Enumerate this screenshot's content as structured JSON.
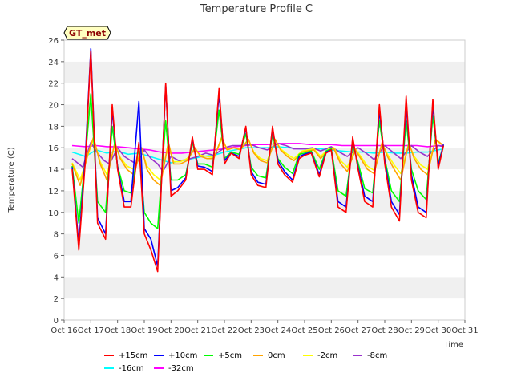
{
  "chart_data": {
    "type": "line",
    "title": "Temperature Profile C",
    "xlabel": "Time",
    "ylabel": "Temperature (C)",
    "ylim": [
      0,
      26
    ],
    "xlim": [
      16,
      31
    ],
    "yticks": [
      0,
      2,
      4,
      6,
      8,
      10,
      12,
      14,
      16,
      18,
      20,
      22,
      24,
      26
    ],
    "xticks": [
      16,
      17,
      18,
      19,
      20,
      21,
      22,
      23,
      24,
      25,
      26,
      27,
      28,
      29,
      30,
      31
    ],
    "xtick_labels": [
      "Oct 16",
      "Oct 17",
      "Oct 18",
      "Oct 19",
      "Oct 20",
      "Oct 21",
      "Oct 22",
      "Oct 23",
      "Oct 24",
      "Oct 25",
      "Oct 26",
      "Oct 27",
      "Oct 28",
      "Oct 29",
      "Oct 30",
      "Oct 31"
    ],
    "grid": "horizontal bands",
    "badge": "GT_met",
    "legend_position": "bottom",
    "series": [
      {
        "name": "+15cm",
        "color": "#ff0000",
        "x": [
          16.3,
          16.55,
          16.8,
          17.0,
          17.25,
          17.55,
          17.8,
          18.0,
          18.25,
          18.5,
          18.8,
          19.0,
          19.25,
          19.5,
          19.8,
          20.0,
          20.25,
          20.55,
          20.8,
          21.0,
          21.25,
          21.55,
          21.8,
          22.0,
          22.25,
          22.55,
          22.8,
          23.0,
          23.25,
          23.55,
          23.8,
          24.0,
          24.25,
          24.55,
          24.8,
          25.0,
          25.25,
          25.55,
          25.8,
          26.0,
          26.25,
          26.55,
          26.8,
          27.0,
          27.25,
          27.55,
          27.8,
          28.0,
          28.25,
          28.55,
          28.8,
          29.0,
          29.25,
          29.55,
          29.8,
          30.0,
          30.2
        ],
        "y": [
          14.0,
          6.5,
          15.0,
          25.0,
          9.0,
          7.5,
          20.0,
          14.0,
          10.5,
          10.5,
          16.5,
          8.0,
          6.5,
          4.5,
          22.0,
          11.5,
          12.0,
          13.0,
          17.0,
          14.0,
          14.0,
          13.5,
          21.5,
          14.5,
          15.5,
          15.0,
          18.0,
          13.5,
          12.5,
          12.3,
          18.0,
          14.5,
          13.5,
          12.8,
          15.0,
          15.3,
          15.5,
          13.3,
          15.5,
          15.8,
          10.5,
          10.0,
          17.0,
          14.0,
          11.0,
          10.5,
          20.0,
          14.5,
          10.5,
          9.2,
          20.8,
          13.0,
          10.0,
          9.5,
          20.5,
          14.0,
          16.2
        ]
      },
      {
        "name": "+10cm",
        "color": "#0000ff",
        "x": [
          16.3,
          16.55,
          16.8,
          17.0,
          17.25,
          17.55,
          17.8,
          18.0,
          18.25,
          18.5,
          18.8,
          19.0,
          19.25,
          19.5,
          19.8,
          20.0,
          20.25,
          20.55,
          20.8,
          21.0,
          21.25,
          21.55,
          21.8,
          22.0,
          22.25,
          22.55,
          22.8,
          23.0,
          23.25,
          23.55,
          23.8,
          24.0,
          24.25,
          24.55,
          24.8,
          25.0,
          25.25,
          25.55,
          25.8,
          26.0,
          26.25,
          26.55,
          26.8,
          27.0,
          27.25,
          27.55,
          27.8,
          28.0,
          28.25,
          28.55,
          28.8,
          29.0,
          29.25,
          29.55,
          29.8,
          30.0,
          30.2
        ],
        "y": [
          14.2,
          7.0,
          15.5,
          25.2,
          9.5,
          8.0,
          19.5,
          14.2,
          11.0,
          11.0,
          20.3,
          8.5,
          7.5,
          5.0,
          21.8,
          12.0,
          12.3,
          13.2,
          16.8,
          14.3,
          14.2,
          13.8,
          21.0,
          14.8,
          15.5,
          15.2,
          17.8,
          13.8,
          12.8,
          12.6,
          17.8,
          14.8,
          13.8,
          13.0,
          15.2,
          15.4,
          15.6,
          13.5,
          15.6,
          15.8,
          11.0,
          10.5,
          16.8,
          14.2,
          11.5,
          11.0,
          19.5,
          14.8,
          11.0,
          9.8,
          20.0,
          13.5,
          10.5,
          10.0,
          20.0,
          14.3,
          16.3
        ]
      },
      {
        "name": "+5cm",
        "color": "#00ff00",
        "x": [
          16.3,
          16.55,
          16.8,
          17.0,
          17.25,
          17.55,
          17.8,
          18.0,
          18.25,
          18.5,
          18.8,
          19.0,
          19.25,
          19.5,
          19.8,
          20.0,
          20.25,
          20.55,
          20.8,
          21.0,
          21.25,
          21.55,
          21.8,
          22.0,
          22.25,
          22.55,
          22.8,
          23.0,
          23.25,
          23.55,
          23.8,
          24.0,
          24.25,
          24.55,
          24.8,
          25.0,
          25.25,
          25.55,
          25.8,
          26.0,
          26.25,
          26.55,
          26.8,
          27.0,
          27.25,
          27.55,
          27.8,
          28.0,
          28.25,
          28.55,
          28.8,
          29.0,
          29.25,
          29.55,
          29.8,
          30.0,
          30.2
        ],
        "y": [
          14.3,
          9.0,
          15.2,
          21.0,
          11.0,
          10.0,
          18.0,
          14.3,
          12.0,
          11.8,
          16.0,
          10.0,
          9.0,
          8.5,
          18.5,
          13.0,
          13.0,
          13.5,
          16.5,
          14.5,
          14.5,
          14.2,
          19.5,
          15.0,
          15.6,
          15.4,
          17.3,
          14.2,
          13.4,
          13.2,
          17.3,
          15.0,
          14.2,
          13.6,
          15.4,
          15.5,
          15.7,
          14.0,
          15.7,
          15.9,
          12.0,
          11.5,
          16.3,
          14.6,
          12.2,
          11.8,
          18.5,
          15.0,
          12.0,
          11.0,
          18.5,
          14.0,
          12.0,
          11.2,
          19.0,
          14.6,
          16.2
        ]
      },
      {
        "name": "0cm",
        "color": "#ffa500",
        "x": [
          16.3,
          16.6,
          16.9,
          17.1,
          17.35,
          17.6,
          17.9,
          18.1,
          18.35,
          18.6,
          18.9,
          19.1,
          19.35,
          19.6,
          19.9,
          20.1,
          20.35,
          20.6,
          20.9,
          21.1,
          21.35,
          21.6,
          21.9,
          22.1,
          22.35,
          22.6,
          22.9,
          23.1,
          23.35,
          23.6,
          23.9,
          24.1,
          24.35,
          24.6,
          24.9,
          25.1,
          25.35,
          25.6,
          25.9,
          26.1,
          26.35,
          26.6,
          26.9,
          27.1,
          27.35,
          27.6,
          27.9,
          28.1,
          28.35,
          28.6,
          28.9,
          29.1,
          29.35,
          29.6,
          29.9,
          30.2
        ],
        "y": [
          14.5,
          12.5,
          15.5,
          17.0,
          14.5,
          13.0,
          16.5,
          15.0,
          14.0,
          13.5,
          16.0,
          14.0,
          13.0,
          12.5,
          16.5,
          14.5,
          14.5,
          14.8,
          16.0,
          15.2,
          15.0,
          15.0,
          17.0,
          15.8,
          16.0,
          15.8,
          16.8,
          15.5,
          14.8,
          14.6,
          16.8,
          15.8,
          15.2,
          14.8,
          15.6,
          15.7,
          15.8,
          15.0,
          15.8,
          15.9,
          14.5,
          13.8,
          15.8,
          15.0,
          14.0,
          13.6,
          16.5,
          15.2,
          14.0,
          13.0,
          16.5,
          15.0,
          14.0,
          13.5,
          16.8,
          16.2
        ]
      },
      {
        "name": "-2cm",
        "color": "#ffff00",
        "x": [
          16.3,
          16.6,
          16.9,
          17.1,
          17.35,
          17.6,
          17.9,
          18.1,
          18.35,
          18.6,
          18.9,
          19.1,
          19.35,
          19.6,
          19.9,
          20.1,
          20.35,
          20.6,
          20.9,
          21.1,
          21.35,
          21.6,
          21.9,
          22.1,
          22.35,
          22.6,
          22.9,
          23.1,
          23.35,
          23.6,
          23.9,
          24.1,
          24.35,
          24.6,
          24.9,
          25.1,
          25.35,
          25.6,
          25.9,
          26.1,
          26.35,
          26.6,
          26.9,
          27.1,
          27.35,
          27.6,
          27.9,
          28.1,
          28.35,
          28.6,
          28.9,
          29.1,
          29.35,
          29.6,
          29.9,
          30.2
        ],
        "y": [
          14.6,
          13.0,
          15.4,
          16.8,
          14.7,
          13.5,
          16.3,
          15.1,
          14.3,
          14.0,
          15.8,
          14.3,
          13.5,
          13.0,
          16.2,
          14.7,
          14.7,
          15.0,
          15.9,
          15.3,
          15.2,
          15.1,
          16.8,
          15.9,
          16.0,
          15.9,
          16.7,
          15.6,
          15.0,
          14.8,
          16.7,
          15.9,
          15.4,
          15.0,
          15.7,
          15.8,
          15.9,
          15.2,
          15.9,
          16.0,
          14.8,
          14.2,
          15.9,
          15.2,
          14.3,
          13.9,
          16.4,
          15.4,
          14.4,
          13.6,
          16.4,
          15.2,
          14.4,
          14.0,
          16.7,
          16.2
        ]
      },
      {
        "name": "-8cm",
        "color": "#9932cc",
        "x": [
          16.3,
          16.7,
          17.0,
          17.25,
          17.5,
          17.7,
          18.0,
          18.25,
          18.5,
          18.7,
          19.0,
          19.25,
          19.5,
          19.7,
          20.0,
          20.3,
          20.6,
          21.0,
          21.3,
          21.6,
          22.0,
          22.3,
          22.6,
          23.0,
          23.3,
          23.6,
          24.0,
          24.3,
          24.6,
          25.0,
          25.3,
          25.6,
          26.0,
          26.3,
          26.6,
          27.0,
          27.3,
          27.6,
          28.0,
          28.3,
          28.6,
          29.0,
          29.3,
          29.6,
          30.0,
          30.2
        ],
        "y": [
          15.0,
          14.2,
          16.5,
          15.5,
          14.8,
          14.5,
          16.0,
          15.2,
          14.8,
          14.5,
          15.8,
          15.0,
          14.5,
          13.8,
          15.2,
          14.8,
          14.9,
          15.2,
          15.5,
          15.3,
          16.0,
          16.2,
          16.2,
          16.3,
          16.0,
          15.8,
          16.4,
          16.2,
          15.9,
          15.9,
          16.0,
          15.7,
          16.1,
          15.6,
          15.2,
          16.0,
          15.5,
          14.9,
          16.2,
          15.6,
          15.0,
          16.2,
          15.6,
          15.2,
          16.2,
          16.1
        ]
      },
      {
        "name": "-16cm",
        "color": "#00ffff",
        "x": [
          16.3,
          16.8,
          17.2,
          17.6,
          18.0,
          18.4,
          18.8,
          19.2,
          19.6,
          20.0,
          20.4,
          20.8,
          21.2,
          21.6,
          22.0,
          22.4,
          22.8,
          23.2,
          23.6,
          24.0,
          24.4,
          24.8,
          25.2,
          25.6,
          26.0,
          26.4,
          26.8,
          27.2,
          27.6,
          28.0,
          28.4,
          28.8,
          29.2,
          29.6,
          30.0,
          30.2
        ],
        "y": [
          15.6,
          15.2,
          15.8,
          15.5,
          15.7,
          15.4,
          15.5,
          15.2,
          14.9,
          14.6,
          14.8,
          15.0,
          15.2,
          15.3,
          15.6,
          15.8,
          16.0,
          16.0,
          16.0,
          16.1,
          16.0,
          15.9,
          15.9,
          15.9,
          15.8,
          15.7,
          15.6,
          15.6,
          15.5,
          15.6,
          15.5,
          15.5,
          15.6,
          15.6,
          15.8,
          15.9
        ]
      },
      {
        "name": "-32cm",
        "color": "#ff00ff",
        "x": [
          16.3,
          16.8,
          17.2,
          17.6,
          18.0,
          18.4,
          18.8,
          19.2,
          19.6,
          20.0,
          20.4,
          20.8,
          21.2,
          21.6,
          22.0,
          22.4,
          22.8,
          23.2,
          23.6,
          24.0,
          24.4,
          24.8,
          25.2,
          25.6,
          26.0,
          26.4,
          26.8,
          27.2,
          27.6,
          28.0,
          28.4,
          28.8,
          29.2,
          29.6,
          30.0,
          30.2
        ],
        "y": [
          16.2,
          16.1,
          16.2,
          16.1,
          16.1,
          16.0,
          15.9,
          15.8,
          15.6,
          15.5,
          15.5,
          15.6,
          15.7,
          15.8,
          15.9,
          16.1,
          16.2,
          16.3,
          16.3,
          16.4,
          16.4,
          16.4,
          16.3,
          16.3,
          16.3,
          16.2,
          16.2,
          16.2,
          16.2,
          16.2,
          16.2,
          16.2,
          16.2,
          16.1,
          16.2,
          16.2
        ]
      }
    ]
  }
}
